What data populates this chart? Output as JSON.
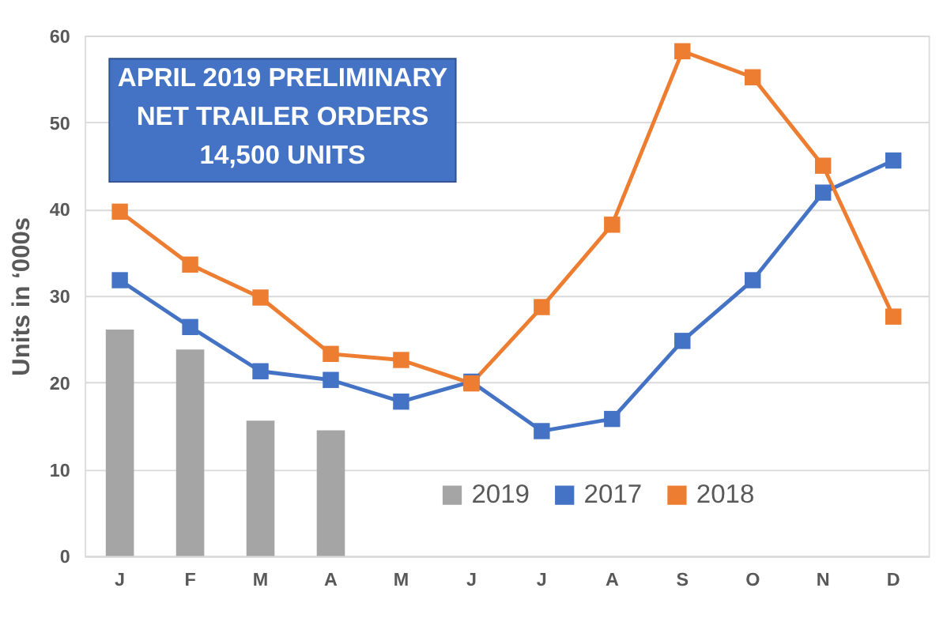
{
  "chart_data": {
    "type": "line",
    "ylabel": "Units in ‘000s",
    "categories": [
      "J",
      "F",
      "M",
      "A",
      "M",
      "J",
      "J",
      "A",
      "S",
      "O",
      "N",
      "D"
    ],
    "series": [
      {
        "name": "2019",
        "type": "bar",
        "color": "#a5a5a5",
        "values": [
          26.1,
          23.8,
          15.6,
          14.5,
          null,
          null,
          null,
          null,
          null,
          null,
          null,
          null
        ]
      },
      {
        "name": "2017",
        "color": "#4472c4",
        "values": [
          31.8,
          26.4,
          21.3,
          20.3,
          17.8,
          20.1,
          14.4,
          15.8,
          24.8,
          31.8,
          41.9,
          45.6
        ]
      },
      {
        "name": "2018",
        "color": "#ed7d31",
        "values": [
          39.7,
          33.6,
          29.8,
          23.3,
          22.6,
          19.9,
          28.7,
          38.2,
          58.2,
          55.2,
          45.0,
          27.6
        ]
      }
    ],
    "ylim": [
      0,
      60
    ],
    "yticks": [
      0,
      10,
      20,
      30,
      40,
      50,
      60
    ],
    "grid": "y",
    "marker": "square",
    "legend": "bottom",
    "annotations": [
      "APRIL 2019 PRELIMINARY\nNET TRAILER ORDERS\n14,500 UNITS"
    ]
  }
}
